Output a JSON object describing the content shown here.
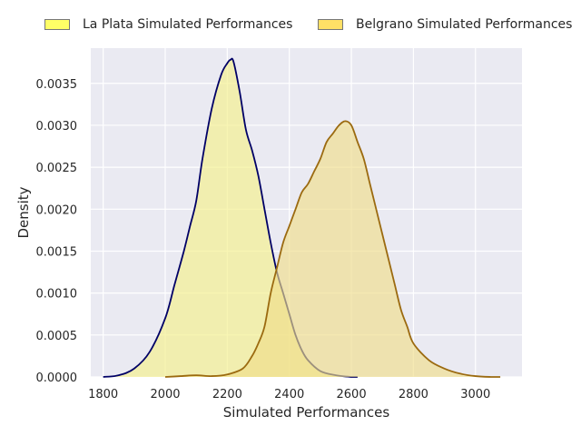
{
  "chart_data": {
    "type": "area",
    "xlabel": "Simulated Performances",
    "ylabel": "Density",
    "xlim": [
      1760,
      3150
    ],
    "ylim": [
      0,
      0.00392
    ],
    "xticks": [
      1800,
      2000,
      2200,
      2400,
      2600,
      2800,
      3000
    ],
    "xtick_labels": [
      "1800",
      "2000",
      "2200",
      "2400",
      "2600",
      "2800",
      "3000"
    ],
    "yticks": [
      0,
      0.0005,
      0.001,
      0.0015,
      0.002,
      0.0025,
      0.003,
      0.0035
    ],
    "ytick_labels": [
      "0.0000",
      "0.0005",
      "0.0010",
      "0.0015",
      "0.0020",
      "0.0025",
      "0.0030",
      "0.0035"
    ],
    "grid": true,
    "legend_position": "top",
    "series": [
      {
        "name": "La Plata Simulated Performances",
        "fill_color": "#f4f08a",
        "line_color": "#000066",
        "swatch_color": "#ffff66",
        "x": [
          1800,
          1850,
          1900,
          1950,
          2000,
          2030,
          2060,
          2080,
          2100,
          2120,
          2150,
          2180,
          2200,
          2210,
          2220,
          2240,
          2260,
          2280,
          2300,
          2320,
          2340,
          2360,
          2380,
          2400,
          2420,
          2440,
          2460,
          2500,
          2550,
          2600,
          2620
        ],
        "y": [
          0,
          2e-05,
          0.0001,
          0.0003,
          0.0007,
          0.0011,
          0.0015,
          0.0018,
          0.0021,
          0.0026,
          0.0032,
          0.0036,
          0.00374,
          0.00378,
          0.00376,
          0.0034,
          0.00295,
          0.0027,
          0.0024,
          0.002,
          0.0016,
          0.00125,
          0.001,
          0.00075,
          0.0005,
          0.00032,
          0.0002,
          7e-05,
          2e-05,
          0,
          0
        ]
      },
      {
        "name": "Belgrano Simulated Performances",
        "fill_color": "#f0dd8a",
        "line_color": "#9b6a10",
        "swatch_color": "#ffe066",
        "x": [
          2000,
          2050,
          2100,
          2150,
          2200,
          2250,
          2280,
          2300,
          2320,
          2340,
          2360,
          2380,
          2400,
          2420,
          2440,
          2460,
          2480,
          2500,
          2520,
          2540,
          2560,
          2580,
          2600,
          2620,
          2640,
          2660,
          2680,
          2700,
          2720,
          2740,
          2760,
          2780,
          2800,
          2850,
          2900,
          2950,
          3000,
          3050,
          3080
        ],
        "y": [
          0,
          1e-05,
          2e-05,
          1e-05,
          3e-05,
          0.0001,
          0.00025,
          0.0004,
          0.0006,
          0.001,
          0.0013,
          0.0016,
          0.0018,
          0.002,
          0.0022,
          0.0023,
          0.00245,
          0.0026,
          0.0028,
          0.0029,
          0.003,
          0.00305,
          0.003,
          0.0028,
          0.0026,
          0.0023,
          0.002,
          0.0017,
          0.0014,
          0.0011,
          0.0008,
          0.0006,
          0.0004,
          0.0002,
          0.0001,
          4e-05,
          1e-05,
          0,
          0
        ]
      }
    ]
  }
}
